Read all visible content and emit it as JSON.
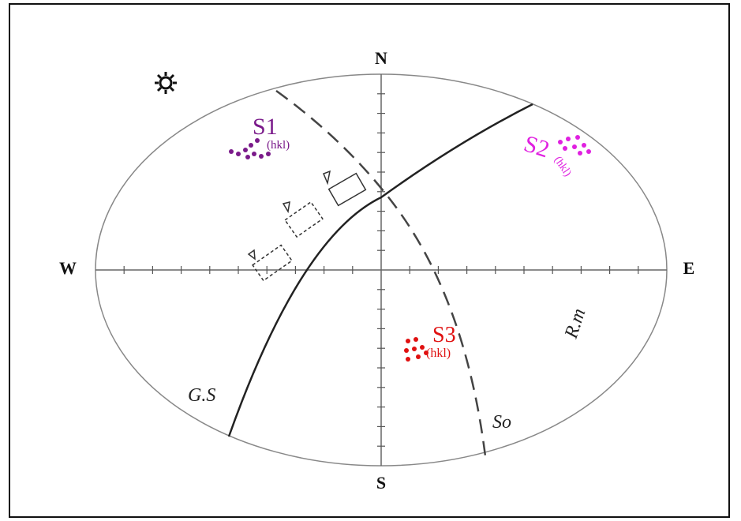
{
  "compass": {
    "north": "N",
    "south": "S",
    "west": "W",
    "east": "E"
  },
  "poles": [
    {
      "label": "S1",
      "sub": "(hkl)"
    },
    {
      "label": "S2",
      "sub": "(hkl)"
    },
    {
      "label": "S3",
      "sub": "(hkl)"
    }
  ],
  "planes": {
    "rm": "R.m",
    "gs": "G.S",
    "so": "So"
  }
}
